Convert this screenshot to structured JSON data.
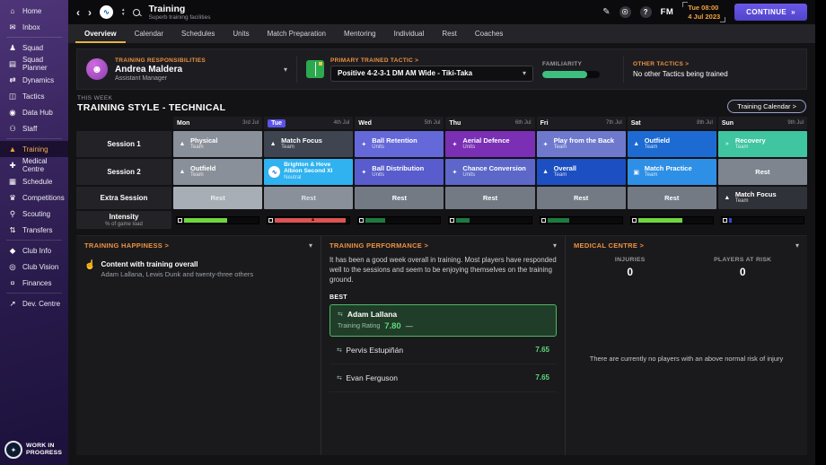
{
  "icons": {
    "back": "‹",
    "forward": "›",
    "sort_up": "▲",
    "sort_down": "▼",
    "badge_wave": "∿",
    "edit": "✎",
    "fmfc": "☉",
    "help": "?",
    "chevron_down": "▾",
    "avatar": "☻",
    "thumb": "☝",
    "player": "⇆",
    "continue_arrow": "»",
    "warning": "▲",
    "logo_dot": "✦"
  },
  "sidebar": {
    "items": [
      {
        "label": "Home",
        "glyph": "⌂"
      },
      {
        "label": "Inbox",
        "glyph": "✉"
      },
      {
        "label": "Squad",
        "glyph": "♟"
      },
      {
        "label": "Squad Planner",
        "glyph": "▤"
      },
      {
        "label": "Dynamics",
        "glyph": "⇄"
      },
      {
        "label": "Tactics",
        "glyph": "◫"
      },
      {
        "label": "Data Hub",
        "glyph": "◉"
      },
      {
        "label": "Staff",
        "glyph": "⚇"
      },
      {
        "label": "Training",
        "glyph": "▲"
      },
      {
        "label": "Medical Centre",
        "glyph": "✚"
      },
      {
        "label": "Schedule",
        "glyph": "▦"
      },
      {
        "label": "Competitions",
        "glyph": "♛"
      },
      {
        "label": "Scouting",
        "glyph": "⚲"
      },
      {
        "label": "Transfers",
        "glyph": "⇅"
      },
      {
        "label": "Club Info",
        "glyph": "◆"
      },
      {
        "label": "Club Vision",
        "glyph": "◎"
      },
      {
        "label": "Finances",
        "glyph": "¤"
      },
      {
        "label": "Dev. Centre",
        "glyph": "↗"
      }
    ],
    "footer": "WORK IN PROGRESS"
  },
  "header": {
    "title": "Training",
    "subtitle": "Superb training facilities",
    "time": "Tue 08:00",
    "date": "4 Jul 2023",
    "fm_logo": "FM",
    "continue_label": "CONTINUE"
  },
  "tabs": [
    "Overview",
    "Calendar",
    "Schedules",
    "Units",
    "Match Preparation",
    "Mentoring",
    "Individual",
    "Rest",
    "Coaches"
  ],
  "responsibilities": {
    "label": "TRAINING RESPONSIBILITIES",
    "name": "Andrea Maldera",
    "role": "Assistant Manager"
  },
  "primary_tactic": {
    "label": "PRIMARY TRAINED TACTIC >",
    "value": "Positive 4-2-3-1 DM AM Wide - Tiki-Taka",
    "familiarity_label": "FAMILIARITY",
    "familiarity_pct": 78
  },
  "other_tactics": {
    "label": "OTHER TACTICS >",
    "value": "No other Tactics being trained"
  },
  "week": {
    "kicker": "THIS WEEK",
    "title": "TRAINING STYLE - TECHNICAL",
    "calendar_button": "Training Calendar >"
  },
  "schedule": {
    "row_labels": {
      "session1": "Session 1",
      "session2": "Session 2",
      "extra": "Extra Session",
      "intensity": "Intensity",
      "intensity_sub": "% of game load"
    },
    "days": [
      {
        "name": "Mon",
        "date": "3rd Jul",
        "current": false,
        "session1": {
          "title": "Physical",
          "sub": "Team",
          "glyph": "▲",
          "color": "#8A9099"
        },
        "session2": {
          "title": "Outfield",
          "sub": "Team",
          "glyph": "▲",
          "color": "#8A9099"
        },
        "extra": {
          "title": "Rest",
          "color": "#A8AEB6"
        },
        "intensity": {
          "pct": 53,
          "color": "#6FD63F",
          "warning": false
        }
      },
      {
        "name": "Tue",
        "date": "4th Jul",
        "current": true,
        "session1": {
          "title": "Match Focus",
          "sub": "Team",
          "glyph": "▲",
          "color": "#3E4450"
        },
        "session2": {
          "title": "Brighton & Hove Albion Second XI",
          "sub": "Neutral",
          "glyph": "∿",
          "color": "#2FB2EF"
        },
        "extra": {
          "title": "Rest",
          "color": "#8A9099"
        },
        "intensity": {
          "pct": 87,
          "color": "#DC5353",
          "warning": true
        }
      },
      {
        "name": "Wed",
        "date": "5th Jul",
        "current": false,
        "session1": {
          "title": "Ball Retention",
          "sub": "Units",
          "glyph": "✦",
          "color": "#6468D8"
        },
        "session2": {
          "title": "Ball Distribution",
          "sub": "Units",
          "glyph": "✦",
          "color": "#585CCC"
        },
        "extra": {
          "title": "Rest",
          "color": "#747A84"
        },
        "intensity": {
          "pct": 24,
          "color": "#1E7A3E",
          "warning": false
        }
      },
      {
        "name": "Thu",
        "date": "6th Jul",
        "current": false,
        "session1": {
          "title": "Aerial Defence",
          "sub": "Units",
          "glyph": "✦",
          "color": "#7A2FB4"
        },
        "session2": {
          "title": "Chance Conversion",
          "sub": "Units",
          "glyph": "✦",
          "color": "#5C67C9"
        },
        "extra": {
          "title": "Rest",
          "color": "#747A84"
        },
        "intensity": {
          "pct": 16,
          "color": "#1E7A3E",
          "warning": false
        }
      },
      {
        "name": "Fri",
        "date": "7th Jul",
        "current": false,
        "session1": {
          "title": "Play from the Back",
          "sub": "Team",
          "glyph": "✦",
          "color": "#6E79CE"
        },
        "session2": {
          "title": "Overall",
          "sub": "Team",
          "glyph": "▲",
          "color": "#1C4FC2"
        },
        "extra": {
          "title": "Rest",
          "color": "#747A84"
        },
        "intensity": {
          "pct": 27,
          "color": "#1E7A3E",
          "warning": false
        }
      },
      {
        "name": "Sat",
        "date": "8th Jul",
        "current": false,
        "session1": {
          "title": "Outfield",
          "sub": "Team",
          "glyph": "▲",
          "color": "#1D6BD2"
        },
        "session2": {
          "title": "Match Practice",
          "sub": "Team",
          "glyph": "▣",
          "color": "#2E8FE6"
        },
        "extra": {
          "title": "Rest",
          "color": "#747A84"
        },
        "intensity": {
          "pct": 54,
          "color": "#6FD63F",
          "warning": false
        }
      },
      {
        "name": "Sun",
        "date": "9th Jul",
        "current": false,
        "session1": {
          "title": "Recovery",
          "sub": "Team",
          "glyph": "»",
          "color": "#3FC5A0"
        },
        "session2": {
          "title": "Rest",
          "color": "#7E858E"
        },
        "extra": {
          "title": "Match Focus",
          "sub": "Team",
          "glyph": "▲",
          "color": "#2F3238"
        },
        "intensity": {
          "pct": 4,
          "color": "#3946D0",
          "warning": false
        }
      }
    ]
  },
  "happiness": {
    "header": "TRAINING HAPPINESS >",
    "title": "Content with training overall",
    "subtitle": "Adam Lallana, Lewis Dunk and twenty-three others"
  },
  "performance": {
    "header": "TRAINING PERFORMANCE >",
    "summary": "It has been a good week overall in training. Most players have responded well to the sessions and seem to be enjoying themselves on the training ground.",
    "best_label": "BEST",
    "best": {
      "name": "Adam Lallana",
      "rating_label": "Training Rating",
      "rating": "7.80",
      "trend": "—"
    },
    "others": [
      {
        "name": "Pervis Estupiñán",
        "rating": "7.65"
      },
      {
        "name": "Evan Ferguson",
        "rating": "7.65"
      }
    ]
  },
  "medical": {
    "header": "MEDICAL CENTRE >",
    "injuries_label": "INJURIES",
    "injuries_value": "0",
    "risk_label": "PLAYERS AT RISK",
    "risk_value": "0",
    "note": "There are currently no players with an above normal risk of injury"
  }
}
